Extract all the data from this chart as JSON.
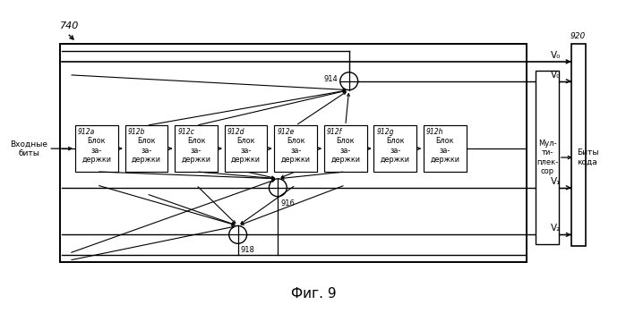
{
  "title": "Фиг. 9",
  "fig_label": "740",
  "label_920": "920",
  "label_914": "914",
  "label_916": "916",
  "label_918": "918",
  "input_label": "Входные\nбиты",
  "output_label": "Биты\nкода",
  "mux_label": "Мул-\nти-\nплек-\nсор",
  "v0_label": "V₀",
  "v1_label": "V₁",
  "v2_label": "V₂",
  "block_labels": [
    "912a",
    "912b",
    "912c",
    "912d",
    "912e",
    "912f",
    "912g",
    "912h"
  ],
  "block_text": "Блок\nза-\nдержки",
  "bg_color": "#ffffff",
  "line_color": "#000000",
  "xor_r": 10,
  "outer_lw": 1.4,
  "inner_lw": 0.9
}
